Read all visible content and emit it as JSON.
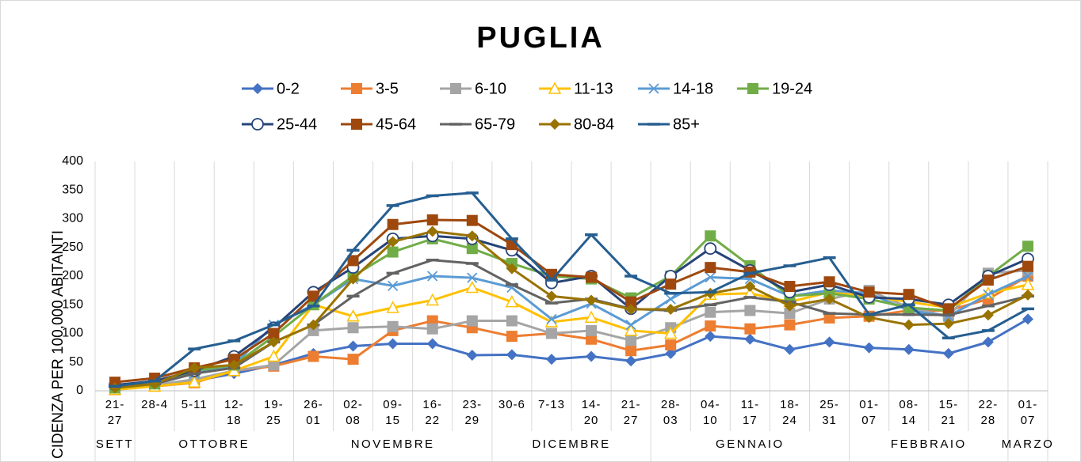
{
  "chart_data": {
    "type": "line",
    "title": "PUGLIA",
    "y_label": "CIDENZA PER 100,000 ABITANTI",
    "categories": [
      [
        "21-",
        "27"
      ],
      [
        "28-4"
      ],
      [
        "5-11"
      ],
      [
        "12-",
        "18"
      ],
      [
        "19-",
        "25"
      ],
      [
        "26-",
        "01"
      ],
      [
        "02-",
        "08"
      ],
      [
        "09-",
        "15"
      ],
      [
        "16-",
        "22"
      ],
      [
        "23-",
        "29"
      ],
      [
        "30-6"
      ],
      [
        "7-13"
      ],
      [
        "14-",
        "20"
      ],
      [
        "21-",
        "27"
      ],
      [
        "28-",
        "03"
      ],
      [
        "04-",
        "10"
      ],
      [
        "11-",
        "17"
      ],
      [
        "18-",
        "24"
      ],
      [
        "25-",
        "31"
      ],
      [
        "01-",
        "07"
      ],
      [
        "08-",
        "14"
      ],
      [
        "15-",
        "21"
      ],
      [
        "22-",
        "28"
      ],
      [
        "01-",
        "07"
      ]
    ],
    "months": [
      "SETT",
      "OTTOBRE",
      null,
      null,
      null,
      "NOVEMBRE",
      null,
      null,
      null,
      null,
      "DICEMBRE",
      null,
      null,
      null,
      "GENNAIO",
      null,
      null,
      null,
      null,
      "FEBBRAIO",
      null,
      null,
      null,
      "MARZO"
    ],
    "ylim": [
      0,
      400
    ],
    "yticks": [
      0,
      50,
      100,
      150,
      200,
      250,
      300,
      350,
      400
    ],
    "series": [
      {
        "name": "0-2",
        "color": "#4472c4",
        "marker": "diamond",
        "values": [
          5,
          10,
          17,
          30,
          45,
          65,
          78,
          82,
          82,
          62,
          63,
          55,
          60,
          52,
          65,
          95,
          90,
          72,
          85,
          75,
          72,
          65,
          85,
          125
        ]
      },
      {
        "name": "3-5",
        "color": "#ed7d31",
        "marker": "square",
        "values": [
          2,
          8,
          14,
          35,
          43,
          60,
          55,
          105,
          122,
          110,
          95,
          100,
          90,
          70,
          80,
          113,
          108,
          115,
          127,
          130,
          140,
          140,
          160,
          200
        ]
      },
      {
        "name": "6-10",
        "color": "#a5a5a5",
        "marker": "square",
        "values": [
          3,
          10,
          20,
          35,
          45,
          105,
          110,
          112,
          108,
          122,
          122,
          100,
          105,
          88,
          110,
          137,
          140,
          135,
          160,
          175,
          145,
          130,
          205,
          210
        ]
      },
      {
        "name": "11-13",
        "color": "#ffc000",
        "marker": "triangle",
        "values": [
          2,
          8,
          15,
          35,
          60,
          150,
          130,
          145,
          158,
          180,
          155,
          120,
          128,
          105,
          100,
          168,
          170,
          155,
          172,
          165,
          155,
          145,
          170,
          185
        ]
      },
      {
        "name": "14-18",
        "color": "#5b9bd5",
        "marker": "x",
        "values": [
          5,
          12,
          30,
          45,
          115,
          150,
          195,
          183,
          200,
          197,
          180,
          125,
          152,
          115,
          160,
          198,
          195,
          165,
          175,
          170,
          140,
          130,
          168,
          200
        ]
      },
      {
        "name": "19-24",
        "color": "#70ad47",
        "marker": "square",
        "values": [
          5,
          12,
          35,
          45,
          95,
          150,
          200,
          242,
          265,
          248,
          222,
          200,
          195,
          162,
          200,
          270,
          218,
          165,
          170,
          160,
          145,
          140,
          200,
          252
        ]
      },
      {
        "name": "25-44",
        "color": "#264478",
        "marker": "circle",
        "values": [
          10,
          17,
          35,
          60,
          110,
          172,
          215,
          265,
          270,
          265,
          245,
          188,
          200,
          143,
          200,
          248,
          210,
          172,
          185,
          163,
          160,
          150,
          200,
          230
        ]
      },
      {
        "name": "45-64",
        "color": "#9e480e",
        "marker": "square",
        "values": [
          15,
          22,
          40,
          55,
          100,
          165,
          227,
          290,
          298,
          297,
          255,
          203,
          198,
          155,
          186,
          215,
          207,
          182,
          190,
          172,
          168,
          143,
          193,
          217
        ]
      },
      {
        "name": "65-79",
        "color": "#636363",
        "marker": "dash",
        "values": [
          7,
          12,
          30,
          40,
          85,
          115,
          165,
          205,
          228,
          222,
          185,
          153,
          160,
          143,
          140,
          150,
          163,
          155,
          135,
          133,
          133,
          132,
          148,
          165
        ]
      },
      {
        "name": "80-84",
        "color": "#997300",
        "marker": "diamond",
        "values": [
          5,
          12,
          40,
          45,
          85,
          115,
          195,
          260,
          278,
          270,
          213,
          165,
          158,
          142,
          142,
          170,
          182,
          148,
          160,
          128,
          115,
          117,
          132,
          167
        ]
      },
      {
        "name": "85+",
        "color": "#255e91",
        "marker": "dash",
        "values": [
          8,
          17,
          73,
          87,
          115,
          148,
          245,
          323,
          340,
          345,
          265,
          193,
          272,
          200,
          170,
          172,
          205,
          218,
          232,
          133,
          150,
          92,
          105,
          143
        ]
      }
    ]
  }
}
